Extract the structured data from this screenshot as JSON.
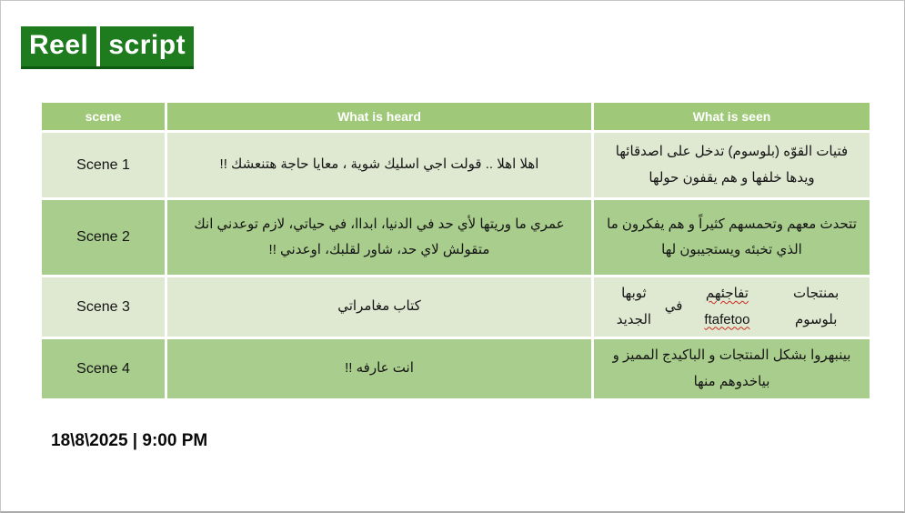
{
  "title": {
    "word1": "Reel",
    "word2": "script"
  },
  "colors": {
    "title_green": "#1e7c1f",
    "title_underline": "#0c5a10",
    "header_green": "#9fc978",
    "row_light": "#dfe9d2",
    "row_medium": "#a9cd8c",
    "misspell_red": "#cc2a1d"
  },
  "table": {
    "headers": [
      "scene",
      "What is heard",
      "What is seen"
    ],
    "rows": [
      {
        "scene": "Scene 1",
        "heard": "اهلا اهلا .. قولت اجي اسليك شوية ، معايا حاجة هتنعشك !!",
        "seen": "فتيات القوّه (بلوسوم) تدخل على اصدقائها\nويدها خلفها و هم يقفون حولها"
      },
      {
        "scene": "Scene 2",
        "heard": "عمري ما وريتها لأي حد في الدنيا، ابداا، في حياتي، لازم توعدني انك\nمتقولش لاي حد، شاور لقلبك، اوعدني !!",
        "seen": "تتحدث معهم وتحمسهم كثيراً و هم يفكرون ما\nالذي تخبئه ويستجيبون لها"
      },
      {
        "scene": "Scene 3",
        "heard": "كتاب مغامراتي",
        "seen_parts": {
          "p1": "بمنتجات بلوسوم",
          "miss": "تفاجئهم ftafetoo",
          "p2": "في",
          "p3": "ثوبها الجديد"
        }
      },
      {
        "scene": "Scene 4",
        "heard": "انت عارفه !!",
        "seen": "بينبهروا بشكل المنتجات و الباكيدج المميز و\nبياخدوهم منها"
      }
    ]
  },
  "footer": {
    "datetime": "18\\8\\2025  |  9:00 PM"
  }
}
